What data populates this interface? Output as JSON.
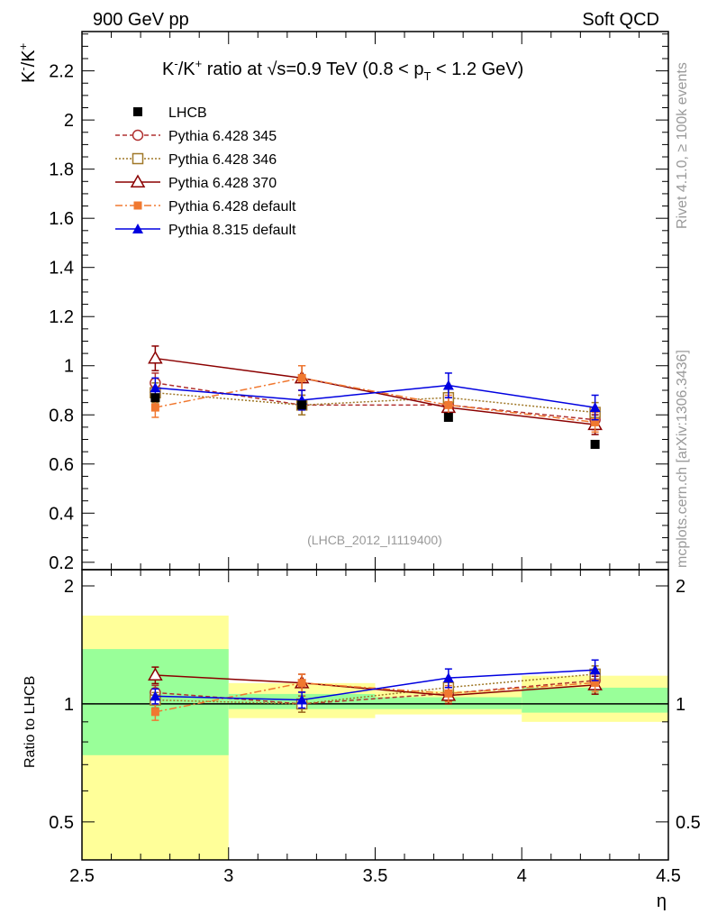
{
  "header": {
    "left": "900 GeV pp",
    "right": "Soft QCD"
  },
  "side_labels": {
    "rivet": "Rivet 4.1.0, ≥ 100k events",
    "mcplots": "mcplots.cern.ch [arXiv:1306.3436]"
  },
  "chart_data": {
    "type": "line",
    "title_parts": {
      "a": "K",
      "a_sup": "-",
      "b": "/K",
      "b_sup": "+",
      "c": " ratio at ",
      "sqrt": "√s",
      "d": "=0.9 TeV (0.8 < p",
      "d_sub": "T",
      "e": " < 1.2 GeV)"
    },
    "ylabel_parts": {
      "a": "K",
      "a_sup": "-",
      "b": "/K",
      "b_sup": "+"
    },
    "xlabel": "η",
    "ratio_ylabel": "Ratio to LHCB",
    "watermark": "(LHCB_2012_I1119400)",
    "xlim": [
      2.5,
      4.5
    ],
    "ylim": [
      0.17,
      2.36
    ],
    "ratio_ylim": [
      0.4,
      2.2
    ],
    "x_ticks": [
      "2.5",
      "3",
      "3.5",
      "4",
      "4.5"
    ],
    "y_ticks": [
      "0.2",
      "0.4",
      "0.6",
      "0.8",
      "1",
      "1.2",
      "1.4",
      "1.6",
      "1.8",
      "2",
      "2.2"
    ],
    "ratio_y_ticks": [
      "0.5",
      "1",
      "2"
    ],
    "x": [
      2.75,
      3.25,
      3.75,
      4.25
    ],
    "bins": [
      [
        2.5,
        3.0
      ],
      [
        3.0,
        3.5
      ],
      [
        3.5,
        4.0
      ],
      [
        4.0,
        4.5
      ]
    ],
    "data": {
      "name": "LHCB",
      "values": [
        0.87,
        0.84,
        0.79,
        0.68
      ]
    },
    "band_inner": [
      [
        0.74,
        1.38
      ],
      [
        0.97,
        1.06
      ],
      [
        0.97,
        1.04
      ],
      [
        0.95,
        1.1
      ]
    ],
    "band_outer": [
      [
        0.4,
        1.68
      ],
      [
        0.92,
        1.13
      ],
      [
        0.94,
        1.08
      ],
      [
        0.9,
        1.18
      ]
    ],
    "series": [
      {
        "name": "Pythia 6.428 345",
        "values": [
          0.93,
          0.84,
          0.84,
          0.78
        ],
        "errors": [
          0.04,
          0.04,
          0.04,
          0.04
        ],
        "color": "#b03030",
        "dash": "5,3",
        "marker": "circle-open"
      },
      {
        "name": "Pythia 6.428 346",
        "values": [
          0.89,
          0.84,
          0.87,
          0.81
        ],
        "errors": [
          0.04,
          0.04,
          0.04,
          0.04
        ],
        "color": "#a07828",
        "dash": "2,2",
        "marker": "square-open"
      },
      {
        "name": "Pythia 6.428 370",
        "values": [
          1.03,
          0.95,
          0.83,
          0.76
        ],
        "errors": [
          0.05,
          0.05,
          0.04,
          0.04
        ],
        "color": "#8b0000",
        "dash": "",
        "marker": "triangle-open"
      },
      {
        "name": "Pythia 6.428 default",
        "values": [
          0.83,
          0.95,
          0.84,
          0.77
        ],
        "errors": [
          0.04,
          0.05,
          0.04,
          0.04
        ],
        "color": "#f07830",
        "dash": "8,3,2,3",
        "marker": "square-filled"
      },
      {
        "name": "Pythia 8.315 default",
        "values": [
          0.91,
          0.86,
          0.92,
          0.83
        ],
        "errors": [
          0.04,
          0.04,
          0.05,
          0.05
        ],
        "color": "#0000e0",
        "dash": "",
        "marker": "triangle-filled"
      }
    ]
  }
}
